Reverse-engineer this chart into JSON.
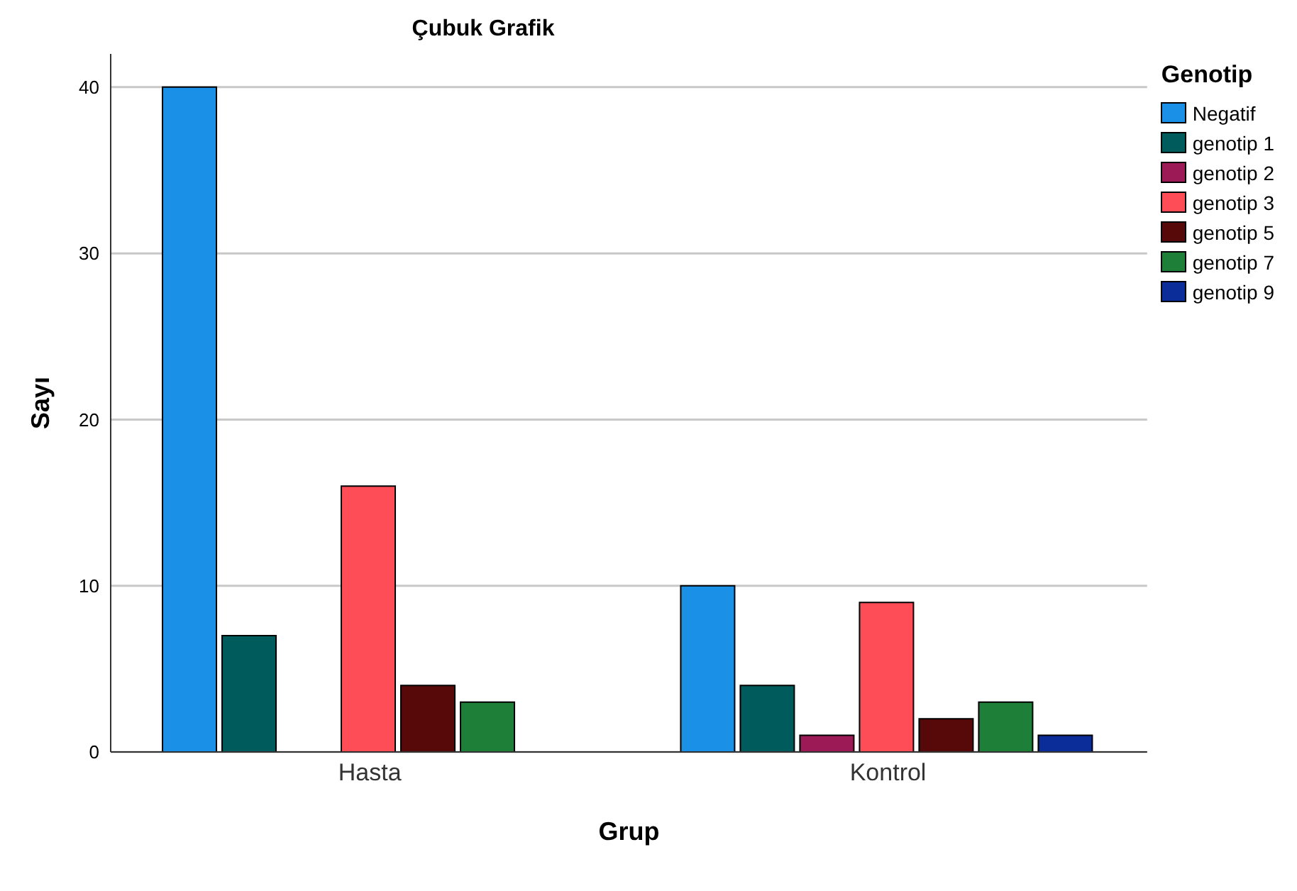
{
  "chart_data": {
    "type": "bar",
    "title": "Çubuk Grafik",
    "xlabel": "Grup",
    "ylabel": "Sayı",
    "legend_title": "Genotip",
    "categories": [
      "Hasta",
      "Kontrol"
    ],
    "series": [
      {
        "name": "Negatif",
        "color": "#1a90e6",
        "values": [
          40,
          10
        ]
      },
      {
        "name": "genotip 1",
        "color": "#005c5c",
        "values": [
          7,
          4
        ]
      },
      {
        "name": "genotip 2",
        "color": "#9c1a55",
        "values": [
          0,
          1
        ]
      },
      {
        "name": "genotip 3",
        "color": "#ff4d57",
        "values": [
          16,
          9
        ]
      },
      {
        "name": "genotip 5",
        "color": "#570808",
        "values": [
          4,
          2
        ]
      },
      {
        "name": "genotip 7",
        "color": "#1e8038",
        "values": [
          3,
          3
        ]
      },
      {
        "name": "genotip 9",
        "color": "#0a2d99",
        "values": [
          0,
          1
        ]
      }
    ],
    "ylim": [
      0,
      42
    ],
    "yticks": [
      0,
      10,
      20,
      30,
      40
    ],
    "grid": "y",
    "legend": "top right"
  }
}
